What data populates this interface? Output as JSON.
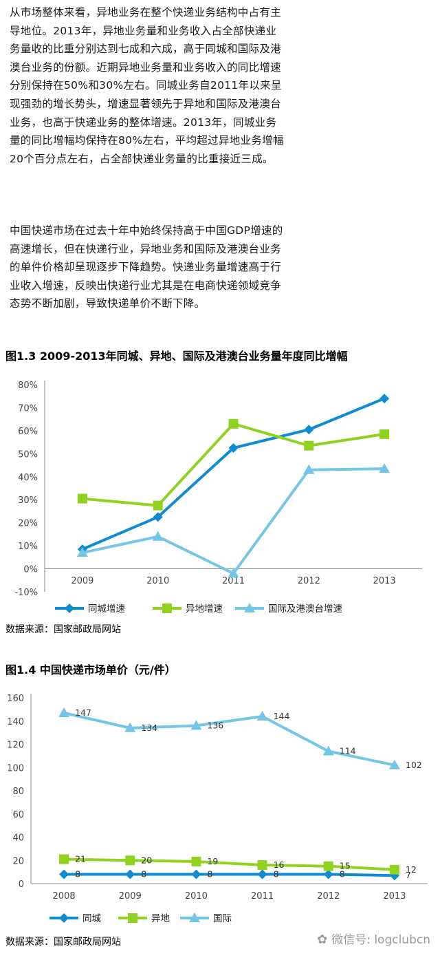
{
  "paragraphs": [
    "从市场整体来看，异地业务在整个快递业务结构中占有主导地位。2013年，异地业务量和业务收入占全部快递业务量收的比重分别达到七成和六成，高于同城和国际及港澳台业务的份额。近期异地业务量和业务收入的同比增速分别保持在50%和30%左右。同城业务自2011年以来呈现强劲的增长势头，增速显著领先于异地和国际及港澳台业务，也高于快递业务的整体增速。2013年，同城业务量的同比增幅均保持在80%左右，平均超过异地业务增幅20个百分点左右，占全部快递业务量的比重接近三成。",
    "中国快递市场在过去十年中始终保持高于中国GDP增速的高速增长，但在快递行业，异地业务和国际及港澳台业务的单件价格却呈现逐步下降趋势。快递业务量增速高于行业收入增速，反映出快递行业尤其是在电商快递领域竞争态势不断加剧，导致快递单价不断下降。"
  ],
  "figures": {
    "fig13_title": "图1.3  2009-2013年同城、异地、国际及港澳台业务量年度同比增幅",
    "fig14_title": "图1.4  中国快递市场单价（元/件）",
    "source_label": "数据来源：国家邮政局网站"
  },
  "watermark": {
    "icon": "wechat-icon",
    "text": "微信号: logclubcn"
  },
  "chart_data": [
    {
      "type": "line",
      "title": "图1.3  2009-2013年同城、异地、国际及港澳台业务量年度同比增幅",
      "categories": [
        "2009",
        "2010",
        "2011",
        "2012",
        "2013"
      ],
      "ylim": [
        -10,
        80
      ],
      "yticks": [
        -10,
        0,
        10,
        20,
        30,
        40,
        50,
        60,
        70,
        80
      ],
      "ytick_suffix": "%",
      "grid": false,
      "legend": "bottom",
      "series": [
        {
          "name": "同城增速",
          "values": [
            8.5,
            22.5,
            52.5,
            60.5,
            74
          ],
          "color": "#0f8bd1",
          "marker": "diamond"
        },
        {
          "name": "异地增速",
          "values": [
            30.5,
            27.5,
            63,
            53.5,
            58.5
          ],
          "color": "#8fd21f",
          "marker": "square"
        },
        {
          "name": "国际及港澳台增速",
          "values": [
            7,
            14,
            -2,
            43,
            43.5
          ],
          "color": "#73c6e5",
          "marker": "triangle"
        }
      ]
    },
    {
      "type": "line",
      "title": "图1.4  中国快递市场单价（元/件）",
      "categories": [
        "2008",
        "2009",
        "2010",
        "2011",
        "2012",
        "2013"
      ],
      "ylim": [
        0,
        160
      ],
      "yticks": [
        0,
        20,
        40,
        60,
        80,
        100,
        120,
        140,
        160
      ],
      "grid": false,
      "legend": "bottom",
      "series": [
        {
          "name": "同城",
          "values": [
            8,
            8,
            8,
            8,
            8,
            7
          ],
          "color": "#0f8bd1",
          "marker": "diamond"
        },
        {
          "name": "异地",
          "values": [
            21,
            20,
            19,
            16,
            15,
            12
          ],
          "color": "#8fd21f",
          "marker": "square"
        },
        {
          "name": "国际",
          "values": [
            147,
            134,
            136,
            144,
            114,
            102
          ],
          "color": "#73c6e5",
          "marker": "triangle"
        }
      ]
    }
  ]
}
